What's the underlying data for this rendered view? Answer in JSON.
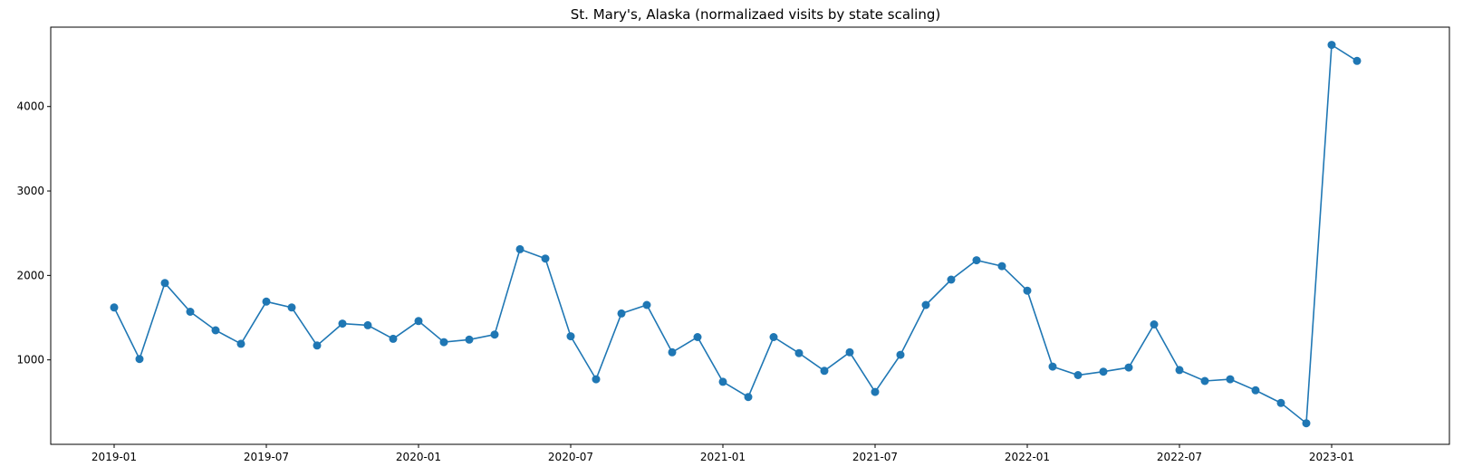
{
  "chart_data": {
    "type": "line",
    "title": "St. Mary's, Alaska (normalizaed visits by state scaling)",
    "xlabel": "",
    "ylabel": "",
    "x_tick_labels": [
      "2019-01",
      "2019-07",
      "2020-01",
      "2020-07",
      "2021-01",
      "2021-07",
      "2022-01",
      "2022-07",
      "2023-01"
    ],
    "y_tick_labels": [
      "1000",
      "2000",
      "3000",
      "4000"
    ],
    "y_ticks": [
      1000,
      2000,
      3000,
      4000
    ],
    "ylim": [
      0,
      4940
    ],
    "grid": false,
    "legend": "none",
    "series": [
      {
        "color": "#1f77b4",
        "marker": "circle",
        "x": [
          "2019-01",
          "2019-02",
          "2019-03",
          "2019-04",
          "2019-05",
          "2019-06",
          "2019-07",
          "2019-08",
          "2019-09",
          "2019-10",
          "2019-11",
          "2019-12",
          "2020-01",
          "2020-02",
          "2020-03",
          "2020-04",
          "2020-05",
          "2020-06",
          "2020-07",
          "2020-08",
          "2020-09",
          "2020-10",
          "2020-11",
          "2020-12",
          "2021-01",
          "2021-02",
          "2021-03",
          "2021-04",
          "2021-05",
          "2021-06",
          "2021-07",
          "2021-08",
          "2021-09",
          "2021-10",
          "2021-11",
          "2021-12",
          "2022-01",
          "2022-02",
          "2022-03",
          "2022-04",
          "2022-05",
          "2022-06",
          "2022-07",
          "2022-08",
          "2022-09",
          "2022-10",
          "2022-11",
          "2022-12",
          "2023-01",
          "2023-02"
        ],
        "values": [
          1620,
          1010,
          1910,
          1570,
          1350,
          1190,
          1690,
          1620,
          1170,
          1430,
          1410,
          1250,
          1460,
          1210,
          1240,
          1300,
          2310,
          2200,
          1280,
          770,
          1550,
          1650,
          1090,
          1270,
          740,
          560,
          1270,
          1080,
          870,
          1090,
          620,
          1060,
          1650,
          1950,
          2180,
          2110,
          1820,
          920,
          820,
          860,
          910,
          1420,
          880,
          750,
          770,
          640,
          490,
          250,
          4730,
          4540
        ]
      }
    ]
  }
}
